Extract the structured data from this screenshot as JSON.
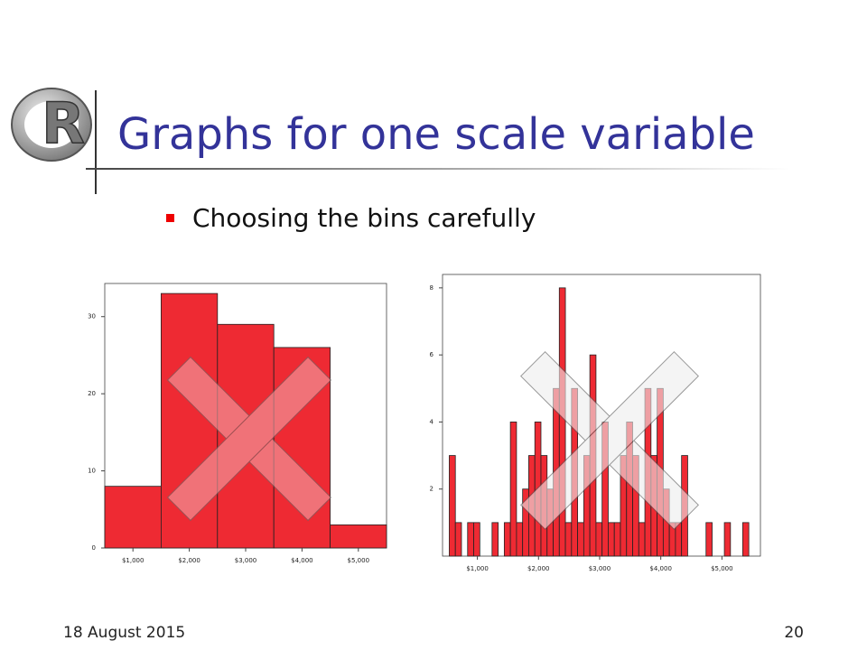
{
  "slide": {
    "logo": "R",
    "title": "Graphs for one scale variable",
    "bullet": "Choosing the bins carefully",
    "date": "18 August 2015",
    "page": "20"
  },
  "chart_data": [
    {
      "type": "histogram",
      "color": "#ee2a33",
      "bins": [
        500,
        1500,
        2500,
        3500,
        4500,
        5500
      ],
      "values": [
        8,
        33,
        29,
        26,
        3
      ],
      "xlim": [
        500,
        5500
      ],
      "xticks": [
        {
          "value": 1000,
          "label": "$1,000"
        },
        {
          "value": 2000,
          "label": "$2,000"
        },
        {
          "value": 3000,
          "label": "$3,000"
        },
        {
          "value": 4000,
          "label": "$4,000"
        },
        {
          "value": 5000,
          "label": "$5,000"
        }
      ],
      "ylim": [
        0,
        34.3
      ],
      "yticks": [
        0,
        10,
        20,
        30
      ]
    },
    {
      "type": "histogram",
      "color": "#ee2a33",
      "bins": [
        540,
        640,
        740,
        840,
        940,
        1040,
        1140,
        1240,
        1340,
        1440,
        1540,
        1640,
        1740,
        1840,
        1940,
        2040,
        2140,
        2240,
        2340,
        2440,
        2540,
        2640,
        2740,
        2840,
        2940,
        3040,
        3140,
        3240,
        3340,
        3440,
        3540,
        3640,
        3740,
        3840,
        3940,
        4040,
        4140,
        4240,
        4340,
        4440,
        4540,
        4640,
        4740,
        4840,
        4940,
        5040,
        5140,
        5240,
        5340,
        5440
      ],
      "values": [
        3,
        1,
        0,
        1,
        1,
        0,
        0,
        1,
        0,
        1,
        4,
        1,
        2,
        3,
        4,
        3,
        2,
        5,
        8,
        1,
        5,
        1,
        3,
        6,
        1,
        4,
        1,
        1,
        3,
        4,
        3,
        1,
        5,
        3,
        5,
        2,
        1,
        1,
        3,
        0,
        0,
        0,
        1,
        0,
        0,
        1,
        0,
        0,
        1
      ],
      "xlim": [
        430,
        5630
      ],
      "xticks": [
        {
          "value": 1000,
          "label": "$1,000"
        },
        {
          "value": 2000,
          "label": "$2,000"
        },
        {
          "value": 3000,
          "label": "$3,000"
        },
        {
          "value": 4000,
          "label": "$4,000"
        },
        {
          "value": 5000,
          "label": "$5,000"
        }
      ],
      "ylim": [
        0,
        8.4
      ],
      "yticks": [
        2,
        4,
        6,
        8
      ]
    }
  ]
}
